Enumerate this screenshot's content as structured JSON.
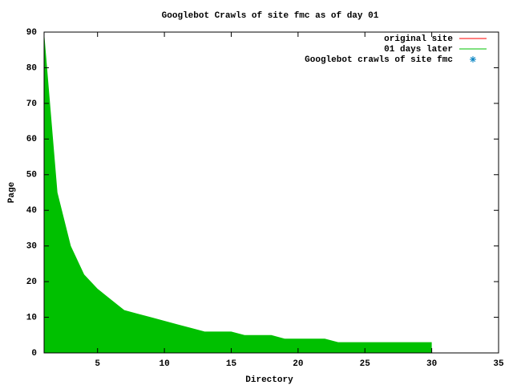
{
  "chart_data": {
    "type": "area",
    "title": "Googlebot Crawls of site fmc as of day 01",
    "x_label": "Directory",
    "y_label": "Page",
    "x": [
      1,
      2,
      3,
      4,
      5,
      6,
      7,
      8,
      9,
      10,
      11,
      12,
      13,
      14,
      15,
      16,
      17,
      18,
      19,
      20,
      21,
      22,
      23,
      24,
      25,
      26,
      27,
      28,
      29,
      30
    ],
    "series": [
      {
        "name": "01 days later",
        "color": "#00c000",
        "values": [
          90,
          45,
          30,
          22,
          18,
          15,
          12,
          11,
          10,
          9,
          8,
          7,
          6,
          6,
          6,
          5,
          5,
          5,
          4,
          4,
          4,
          4,
          3,
          3,
          3,
          3,
          3,
          3,
          3,
          3
        ]
      }
    ],
    "legend": [
      {
        "label": "original site",
        "color": "#ff0000",
        "marker": "line"
      },
      {
        "label": "01 days later",
        "color": "#00c000",
        "marker": "line"
      },
      {
        "label": "Googlebot crawls of site fmc",
        "color": "#0080c0",
        "marker": "star"
      }
    ],
    "legend_position": "top-right",
    "xlim": [
      1,
      35
    ],
    "xticks": [
      5,
      10,
      15,
      20,
      25,
      30,
      35
    ],
    "ylim": [
      0,
      90
    ],
    "yticks": [
      0,
      10,
      20,
      30,
      40,
      50,
      60,
      70,
      80,
      90
    ]
  }
}
